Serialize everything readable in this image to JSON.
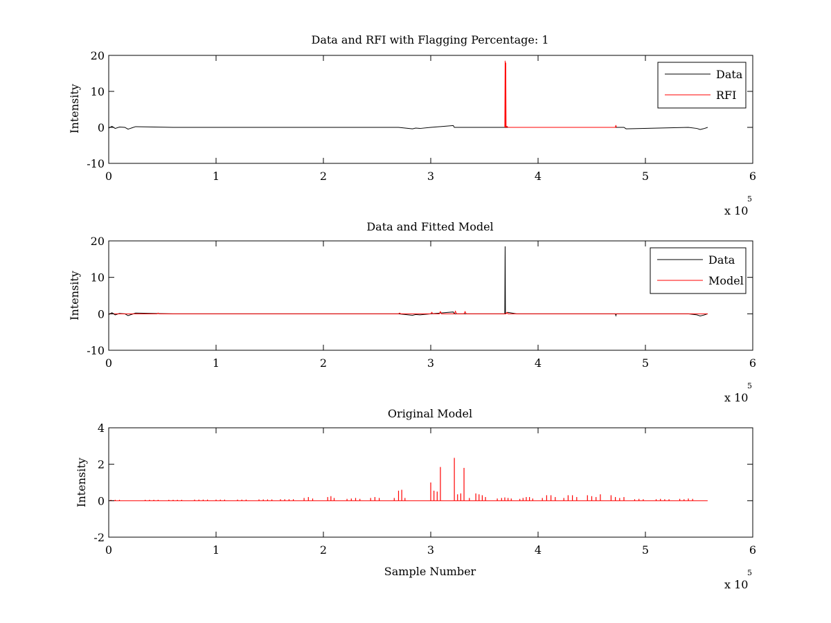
{
  "figure": {
    "background": "#ffffff",
    "axis_color": "#000000"
  },
  "chart_data": [
    {
      "type": "line",
      "title": "Data and RFI with Flagging Percentage: 1",
      "xlabel": "",
      "ylabel": "Intensity",
      "xlim": [
        0,
        600000
      ],
      "ylim": [
        -10,
        20
      ],
      "xticks": [
        0,
        100000,
        200000,
        300000,
        400000,
        500000,
        600000
      ],
      "xtick_labels": [
        "0",
        "1",
        "2",
        "3",
        "4",
        "5",
        "6"
      ],
      "yticks": [
        -10,
        0,
        10,
        20
      ],
      "ytick_labels": [
        "-10",
        "0",
        "10",
        "20"
      ],
      "x_multiplier": {
        "base": "x 10",
        "exponent": "5"
      },
      "grid": false,
      "legend": {
        "position": "top-right",
        "entries": [
          "Data",
          "RFI"
        ]
      },
      "series": [
        {
          "name": "Data",
          "color": "#000000",
          "x": [
            0,
            3000,
            6000,
            10000,
            15000,
            18000,
            20000,
            22000,
            25000,
            60000,
            120000,
            200000,
            270000,
            283000,
            286000,
            290000,
            300000,
            321000,
            322000,
            330000,
            368000,
            369000,
            372000,
            380000,
            480000,
            482000,
            540000,
            548000,
            551000,
            555000,
            558000
          ],
          "y": [
            -0.2,
            0.3,
            -0.3,
            0.1,
            0.0,
            -0.5,
            -0.3,
            -0.1,
            0.2,
            0.0,
            0.0,
            0.0,
            0.0,
            -0.4,
            -0.2,
            -0.3,
            0.0,
            0.5,
            0.0,
            0.0,
            0.0,
            0.0,
            0.0,
            0.0,
            0.0,
            -0.4,
            0.0,
            -0.3,
            -0.6,
            -0.3,
            0.0
          ]
        },
        {
          "name": "RFI",
          "color": "#ff0000",
          "x": [
            369000,
            369300,
            369600,
            369900,
            370200,
            371000,
            372000,
            472000,
            472500,
            473000
          ],
          "y": [
            0,
            18.5,
            0,
            18.0,
            0,
            0.3,
            0,
            0,
            0.6,
            0
          ]
        }
      ]
    },
    {
      "type": "line",
      "title": "Data and Fitted Model",
      "xlabel": "",
      "ylabel": "Intensity",
      "xlim": [
        0,
        600000
      ],
      "ylim": [
        -10,
        20
      ],
      "xticks": [
        0,
        100000,
        200000,
        300000,
        400000,
        500000,
        600000
      ],
      "xtick_labels": [
        "0",
        "1",
        "2",
        "3",
        "4",
        "5",
        "6"
      ],
      "yticks": [
        -10,
        0,
        10,
        20
      ],
      "ytick_labels": [
        "-10",
        "0",
        "10",
        "20"
      ],
      "x_multiplier": {
        "base": "x 10",
        "exponent": "5"
      },
      "grid": false,
      "legend": {
        "position": "top-right",
        "entries": [
          "Data",
          "Model"
        ]
      },
      "series": [
        {
          "name": "Data",
          "color": "#000000",
          "x": [
            0,
            3000,
            6000,
            10000,
            15000,
            18000,
            20000,
            22000,
            25000,
            60000,
            120000,
            200000,
            270000,
            283000,
            286000,
            290000,
            300000,
            321000,
            322000,
            330000,
            368000,
            369000,
            369300,
            369600,
            372000,
            380000,
            472000,
            472500,
            473000,
            540000,
            548000,
            551000,
            555000,
            558000
          ],
          "y": [
            -0.2,
            0.3,
            -0.3,
            0.1,
            0.0,
            -0.5,
            -0.3,
            -0.1,
            0.2,
            0.0,
            0.0,
            0.0,
            0.0,
            -0.4,
            -0.2,
            -0.3,
            0.0,
            0.5,
            0.0,
            0.0,
            0.0,
            0.0,
            18.5,
            0.0,
            0.4,
            0.0,
            0.0,
            -0.5,
            0.0,
            0.0,
            -0.3,
            -0.6,
            -0.3,
            0.0
          ]
        },
        {
          "name": "Model",
          "color": "#ff0000",
          "x": [
            0,
            45000,
            46000,
            47000,
            270000,
            271000,
            272000,
            300000,
            301000,
            302000,
            308000,
            309000,
            310000,
            322000,
            323000,
            324000,
            331000,
            332000,
            333000,
            370000,
            371000,
            372000,
            558000
          ],
          "y": [
            0,
            0,
            0.2,
            0,
            0,
            0.2,
            0,
            0,
            0.4,
            0,
            0,
            0.6,
            0,
            0,
            0.7,
            0,
            0,
            0.6,
            0,
            0,
            0.4,
            0,
            0
          ]
        }
      ]
    },
    {
      "type": "line",
      "title": "Original Model",
      "xlabel": "Sample Number",
      "ylabel": "Intensity",
      "xlim": [
        0,
        600000
      ],
      "ylim": [
        -2,
        4
      ],
      "xticks": [
        0,
        100000,
        200000,
        300000,
        400000,
        500000,
        600000
      ],
      "xtick_labels": [
        "0",
        "1",
        "2",
        "3",
        "4",
        "5",
        "6"
      ],
      "yticks": [
        -2,
        0,
        2,
        4
      ],
      "ytick_labels": [
        "-2",
        "0",
        "2",
        "4"
      ],
      "x_multiplier": {
        "base": "x 10",
        "exponent": "5"
      },
      "grid": false,
      "legend": null,
      "series": [
        {
          "color": "#ff0000",
          "baseline_x": [
            0,
            558000
          ],
          "baseline_y": [
            0,
            0
          ],
          "spikes": [
            [
              2000,
              0.05
            ],
            [
              6000,
              0.05
            ],
            [
              10000,
              0.05
            ],
            [
              34000,
              0.05
            ],
            [
              38000,
              0.05
            ],
            [
              42000,
              0.05
            ],
            [
              46000,
              0.05
            ],
            [
              56000,
              0.05
            ],
            [
              60000,
              0.05
            ],
            [
              64000,
              0.05
            ],
            [
              68000,
              0.05
            ],
            [
              80000,
              0.06
            ],
            [
              84000,
              0.06
            ],
            [
              88000,
              0.06
            ],
            [
              92000,
              0.06
            ],
            [
              100000,
              0.06
            ],
            [
              104000,
              0.06
            ],
            [
              108000,
              0.06
            ],
            [
              120000,
              0.06
            ],
            [
              124000,
              0.06
            ],
            [
              128000,
              0.06
            ],
            [
              140000,
              0.07
            ],
            [
              144000,
              0.07
            ],
            [
              148000,
              0.07
            ],
            [
              152000,
              0.07
            ],
            [
              160000,
              0.08
            ],
            [
              164000,
              0.08
            ],
            [
              168000,
              0.08
            ],
            [
              172000,
              0.08
            ],
            [
              182000,
              0.15
            ],
            [
              186000,
              0.2
            ],
            [
              190000,
              0.12
            ],
            [
              204000,
              0.2
            ],
            [
              207000,
              0.25
            ],
            [
              210000,
              0.15
            ],
            [
              222000,
              0.1
            ],
            [
              226000,
              0.12
            ],
            [
              230000,
              0.15
            ],
            [
              234000,
              0.1
            ],
            [
              244000,
              0.15
            ],
            [
              248000,
              0.2
            ],
            [
              252000,
              0.15
            ],
            [
              266000,
              0.15
            ],
            [
              270000,
              0.55
            ],
            [
              273000,
              0.6
            ],
            [
              276000,
              0.15
            ],
            [
              300000,
              1.0
            ],
            [
              303000,
              0.55
            ],
            [
              306000,
              0.5
            ],
            [
              309000,
              1.85
            ],
            [
              322000,
              2.35
            ],
            [
              325000,
              0.35
            ],
            [
              328000,
              0.4
            ],
            [
              331000,
              1.8
            ],
            [
              336000,
              0.15
            ],
            [
              342000,
              0.4
            ],
            [
              345000,
              0.35
            ],
            [
              348000,
              0.3
            ],
            [
              351000,
              0.2
            ],
            [
              362000,
              0.12
            ],
            [
              366000,
              0.15
            ],
            [
              369000,
              0.18
            ],
            [
              372000,
              0.15
            ],
            [
              375000,
              0.12
            ],
            [
              383000,
              0.1
            ],
            [
              386000,
              0.15
            ],
            [
              389000,
              0.2
            ],
            [
              392000,
              0.2
            ],
            [
              395000,
              0.12
            ],
            [
              404000,
              0.15
            ],
            [
              408000,
              0.3
            ],
            [
              412000,
              0.3
            ],
            [
              416000,
              0.2
            ],
            [
              424000,
              0.15
            ],
            [
              428000,
              0.3
            ],
            [
              432000,
              0.3
            ],
            [
              436000,
              0.2
            ],
            [
              446000,
              0.3
            ],
            [
              450000,
              0.25
            ],
            [
              454000,
              0.2
            ],
            [
              458000,
              0.35
            ],
            [
              468000,
              0.3
            ],
            [
              472000,
              0.2
            ],
            [
              476000,
              0.15
            ],
            [
              480000,
              0.2
            ],
            [
              490000,
              0.08
            ],
            [
              494000,
              0.1
            ],
            [
              498000,
              0.08
            ],
            [
              510000,
              0.08
            ],
            [
              514000,
              0.1
            ],
            [
              518000,
              0.08
            ],
            [
              522000,
              0.08
            ],
            [
              532000,
              0.1
            ],
            [
              536000,
              0.08
            ],
            [
              540000,
              0.12
            ],
            [
              544000,
              0.1
            ]
          ]
        }
      ]
    }
  ]
}
